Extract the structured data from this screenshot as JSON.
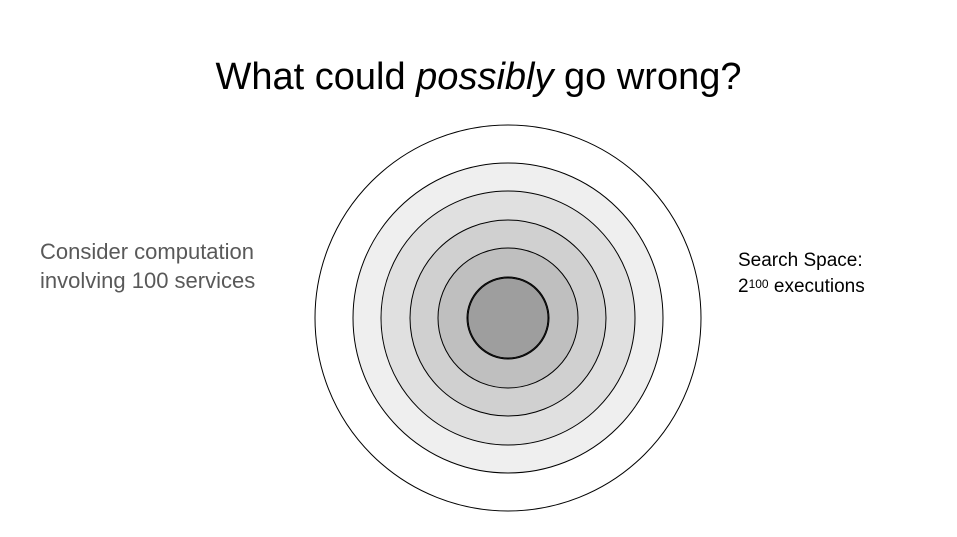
{
  "title": {
    "prefix": "What could ",
    "emphasis": "possibly",
    "suffix": " go wrong?"
  },
  "left_note": {
    "line1": "Consider computation",
    "line2": "involving 100 services"
  },
  "right_note": {
    "line1": "Search Space:",
    "base": "2",
    "exponent": "100",
    "line2_suffix": " executions"
  },
  "rings": {
    "count": 7,
    "fills": [
      "#ffffff",
      "#efefef",
      "#e0e0e0",
      "#d0d0d0",
      "#bfbfbf",
      "#b0b0b0",
      "#9e9e9e"
    ],
    "stroke": "#000000"
  }
}
